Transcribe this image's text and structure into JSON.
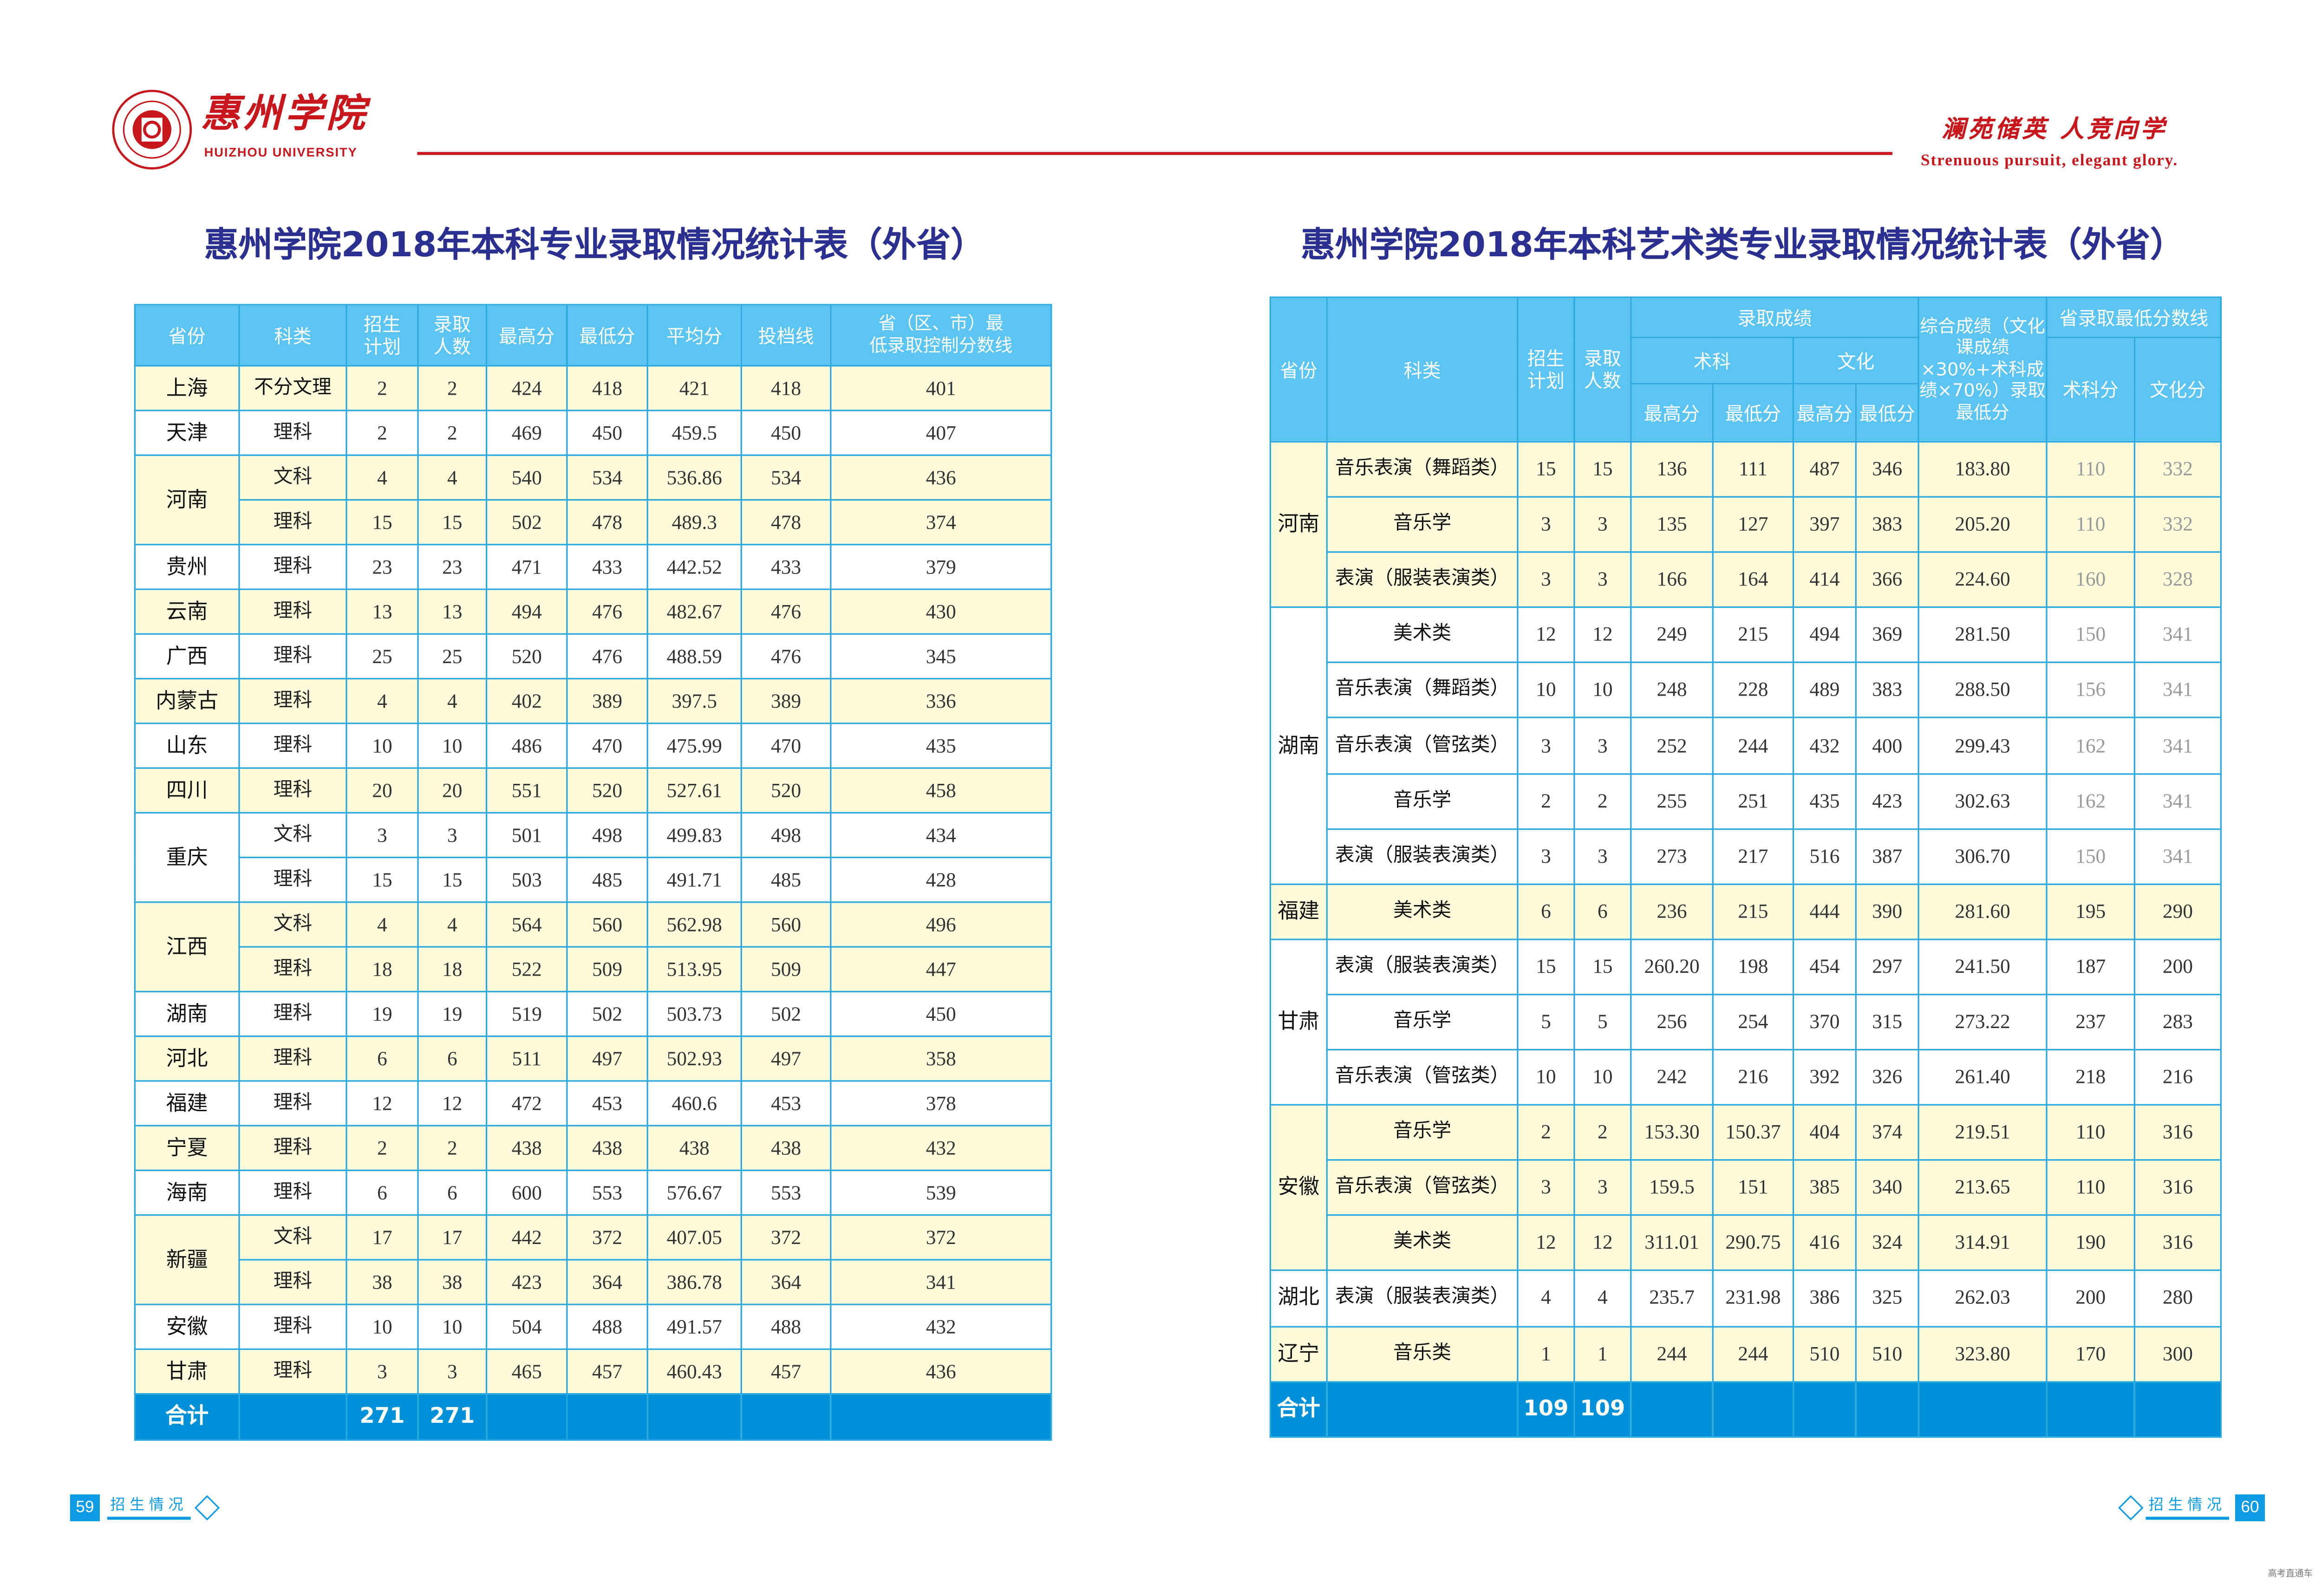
{
  "header": {
    "logo_cn": "惠州学院",
    "logo_en": "HUIZHOU UNIVERSITY",
    "slogan_cn": "澜苑储英 人竞向学",
    "slogan_en": "Strenuous pursuit, elegant glory.",
    "brand_color": "#c8161d"
  },
  "left_table": {
    "title": "惠州学院2018年本科专业录取情况统计表（外省）",
    "columns": [
      "省份",
      "科类",
      "招生\n计划",
      "录取\n人数",
      "最高分",
      "最低分",
      "平均分",
      "投档线",
      "省（区、市）最\n低录取控制分数线"
    ],
    "groups": [
      {
        "province": "上海",
        "rows": [
          [
            "不分文理",
            "2",
            "2",
            "424",
            "418",
            "421",
            "418",
            "401"
          ]
        ]
      },
      {
        "province": "天津",
        "rows": [
          [
            "理科",
            "2",
            "2",
            "469",
            "450",
            "459.5",
            "450",
            "407"
          ]
        ]
      },
      {
        "province": "河南",
        "rows": [
          [
            "文科",
            "4",
            "4",
            "540",
            "534",
            "536.86",
            "534",
            "436"
          ],
          [
            "理科",
            "15",
            "15",
            "502",
            "478",
            "489.3",
            "478",
            "374"
          ]
        ]
      },
      {
        "province": "贵州",
        "rows": [
          [
            "理科",
            "23",
            "23",
            "471",
            "433",
            "442.52",
            "433",
            "379"
          ]
        ]
      },
      {
        "province": "云南",
        "rows": [
          [
            "理科",
            "13",
            "13",
            "494",
            "476",
            "482.67",
            "476",
            "430"
          ]
        ]
      },
      {
        "province": "广西",
        "rows": [
          [
            "理科",
            "25",
            "25",
            "520",
            "476",
            "488.59",
            "476",
            "345"
          ]
        ]
      },
      {
        "province": "内蒙古",
        "rows": [
          [
            "理科",
            "4",
            "4",
            "402",
            "389",
            "397.5",
            "389",
            "336"
          ]
        ]
      },
      {
        "province": "山东",
        "rows": [
          [
            "理科",
            "10",
            "10",
            "486",
            "470",
            "475.99",
            "470",
            "435"
          ]
        ]
      },
      {
        "province": "四川",
        "rows": [
          [
            "理科",
            "20",
            "20",
            "551",
            "520",
            "527.61",
            "520",
            "458"
          ]
        ]
      },
      {
        "province": "重庆",
        "rows": [
          [
            "文科",
            "3",
            "3",
            "501",
            "498",
            "499.83",
            "498",
            "434"
          ],
          [
            "理科",
            "15",
            "15",
            "503",
            "485",
            "491.71",
            "485",
            "428"
          ]
        ]
      },
      {
        "province": "江西",
        "rows": [
          [
            "文科",
            "4",
            "4",
            "564",
            "560",
            "562.98",
            "560",
            "496"
          ],
          [
            "理科",
            "18",
            "18",
            "522",
            "509",
            "513.95",
            "509",
            "447"
          ]
        ]
      },
      {
        "province": "湖南",
        "rows": [
          [
            "理科",
            "19",
            "19",
            "519",
            "502",
            "503.73",
            "502",
            "450"
          ]
        ]
      },
      {
        "province": "河北",
        "rows": [
          [
            "理科",
            "6",
            "6",
            "511",
            "497",
            "502.93",
            "497",
            "358"
          ]
        ]
      },
      {
        "province": "福建",
        "rows": [
          [
            "理科",
            "12",
            "12",
            "472",
            "453",
            "460.6",
            "453",
            "378"
          ]
        ]
      },
      {
        "province": "宁夏",
        "rows": [
          [
            "理科",
            "2",
            "2",
            "438",
            "438",
            "438",
            "438",
            "432"
          ]
        ]
      },
      {
        "province": "海南",
        "rows": [
          [
            "理科",
            "6",
            "6",
            "600",
            "553",
            "576.67",
            "553",
            "539"
          ]
        ]
      },
      {
        "province": "新疆",
        "rows": [
          [
            "文科",
            "17",
            "17",
            "442",
            "372",
            "407.05",
            "372",
            "372"
          ],
          [
            "理科",
            "38",
            "38",
            "423",
            "364",
            "386.78",
            "364",
            "341"
          ]
        ]
      },
      {
        "province": "安徽",
        "rows": [
          [
            "理科",
            "10",
            "10",
            "504",
            "488",
            "491.57",
            "488",
            "432"
          ]
        ]
      },
      {
        "province": "甘肃",
        "rows": [
          [
            "理科",
            "3",
            "3",
            "465",
            "457",
            "460.43",
            "457",
            "436"
          ]
        ]
      }
    ],
    "total": {
      "label": "合计",
      "plan": "271",
      "admitted": "271"
    }
  },
  "right_table": {
    "title": "惠州学院2018年本科艺术类专业录取情况统计表（外省）",
    "headers": {
      "province": "省份",
      "category": "科类",
      "plan": "招生\n计划",
      "admitted": "录取\n人数",
      "scores": "录取成绩",
      "art": "术科",
      "culture": "文化",
      "max": "最高分",
      "min": "最低分",
      "composite": "综合成绩（文化课成绩×30%+术科成绩×70%）录取最低分",
      "province_line": "省录取最低分数线",
      "art_line": "术科分",
      "culture_line": "文化分"
    },
    "groups": [
      {
        "province": "河南",
        "grey_lines": true,
        "rows": [
          [
            "音乐表演（舞蹈类）",
            "15",
            "15",
            "136",
            "111",
            "487",
            "346",
            "183.80",
            "110",
            "332"
          ],
          [
            "音乐学",
            "3",
            "3",
            "135",
            "127",
            "397",
            "383",
            "205.20",
            "110",
            "332"
          ],
          [
            "表演（服装表演类）",
            "3",
            "3",
            "166",
            "164",
            "414",
            "366",
            "224.60",
            "160",
            "328"
          ]
        ]
      },
      {
        "province": "湖南",
        "grey_lines": true,
        "rows": [
          [
            "美术类",
            "12",
            "12",
            "249",
            "215",
            "494",
            "369",
            "281.50",
            "150",
            "341"
          ],
          [
            "音乐表演（舞蹈类）",
            "10",
            "10",
            "248",
            "228",
            "489",
            "383",
            "288.50",
            "156",
            "341"
          ],
          [
            "音乐表演（管弦类）",
            "3",
            "3",
            "252",
            "244",
            "432",
            "400",
            "299.43",
            "162",
            "341"
          ],
          [
            "音乐学",
            "2",
            "2",
            "255",
            "251",
            "435",
            "423",
            "302.63",
            "162",
            "341"
          ],
          [
            "表演（服装表演类）",
            "3",
            "3",
            "273",
            "217",
            "516",
            "387",
            "306.70",
            "150",
            "341"
          ]
        ]
      },
      {
        "province": "福建",
        "rows": [
          [
            "美术类",
            "6",
            "6",
            "236",
            "215",
            "444",
            "390",
            "281.60",
            "195",
            "290"
          ]
        ]
      },
      {
        "province": "甘肃",
        "rows": [
          [
            "表演（服装表演类）",
            "15",
            "15",
            "260.20",
            "198",
            "454",
            "297",
            "241.50",
            "187",
            "200"
          ],
          [
            "音乐学",
            "5",
            "5",
            "256",
            "254",
            "370",
            "315",
            "273.22",
            "237",
            "283"
          ],
          [
            "音乐表演（管弦类）",
            "10",
            "10",
            "242",
            "216",
            "392",
            "326",
            "261.40",
            "218",
            "216"
          ]
        ]
      },
      {
        "province": "安徽",
        "rows": [
          [
            "音乐学",
            "2",
            "2",
            "153.30",
            "150.37",
            "404",
            "374",
            "219.51",
            "110",
            "316"
          ],
          [
            "音乐表演（管弦类）",
            "3",
            "3",
            "159.5",
            "151",
            "385",
            "340",
            "213.65",
            "110",
            "316"
          ],
          [
            "美术类",
            "12",
            "12",
            "311.01",
            "290.75",
            "416",
            "324",
            "314.91",
            "190",
            "316"
          ]
        ]
      },
      {
        "province": "湖北",
        "rows": [
          [
            "表演（服装表演类）",
            "4",
            "4",
            "235.7",
            "231.98",
            "386",
            "325",
            "262.03",
            "200",
            "280"
          ]
        ]
      },
      {
        "province": "辽宁",
        "rows": [
          [
            "音乐类",
            "1",
            "1",
            "244",
            "244",
            "510",
            "510",
            "323.80",
            "170",
            "300"
          ]
        ]
      }
    ],
    "total": {
      "label": "合计",
      "plan": "109",
      "admitted": "109"
    }
  },
  "footer": {
    "left_page": "59",
    "right_page": "60",
    "section": "招生情况",
    "watermark": "高考直通车",
    "accent_color": "#0d9be3"
  },
  "colors": {
    "title": "#2b2f8f",
    "header_bg": "#5bc4f0",
    "row_yellow": "#fdfbd9",
    "total_bg": "#0090d8",
    "border": "#29a8e0"
  }
}
